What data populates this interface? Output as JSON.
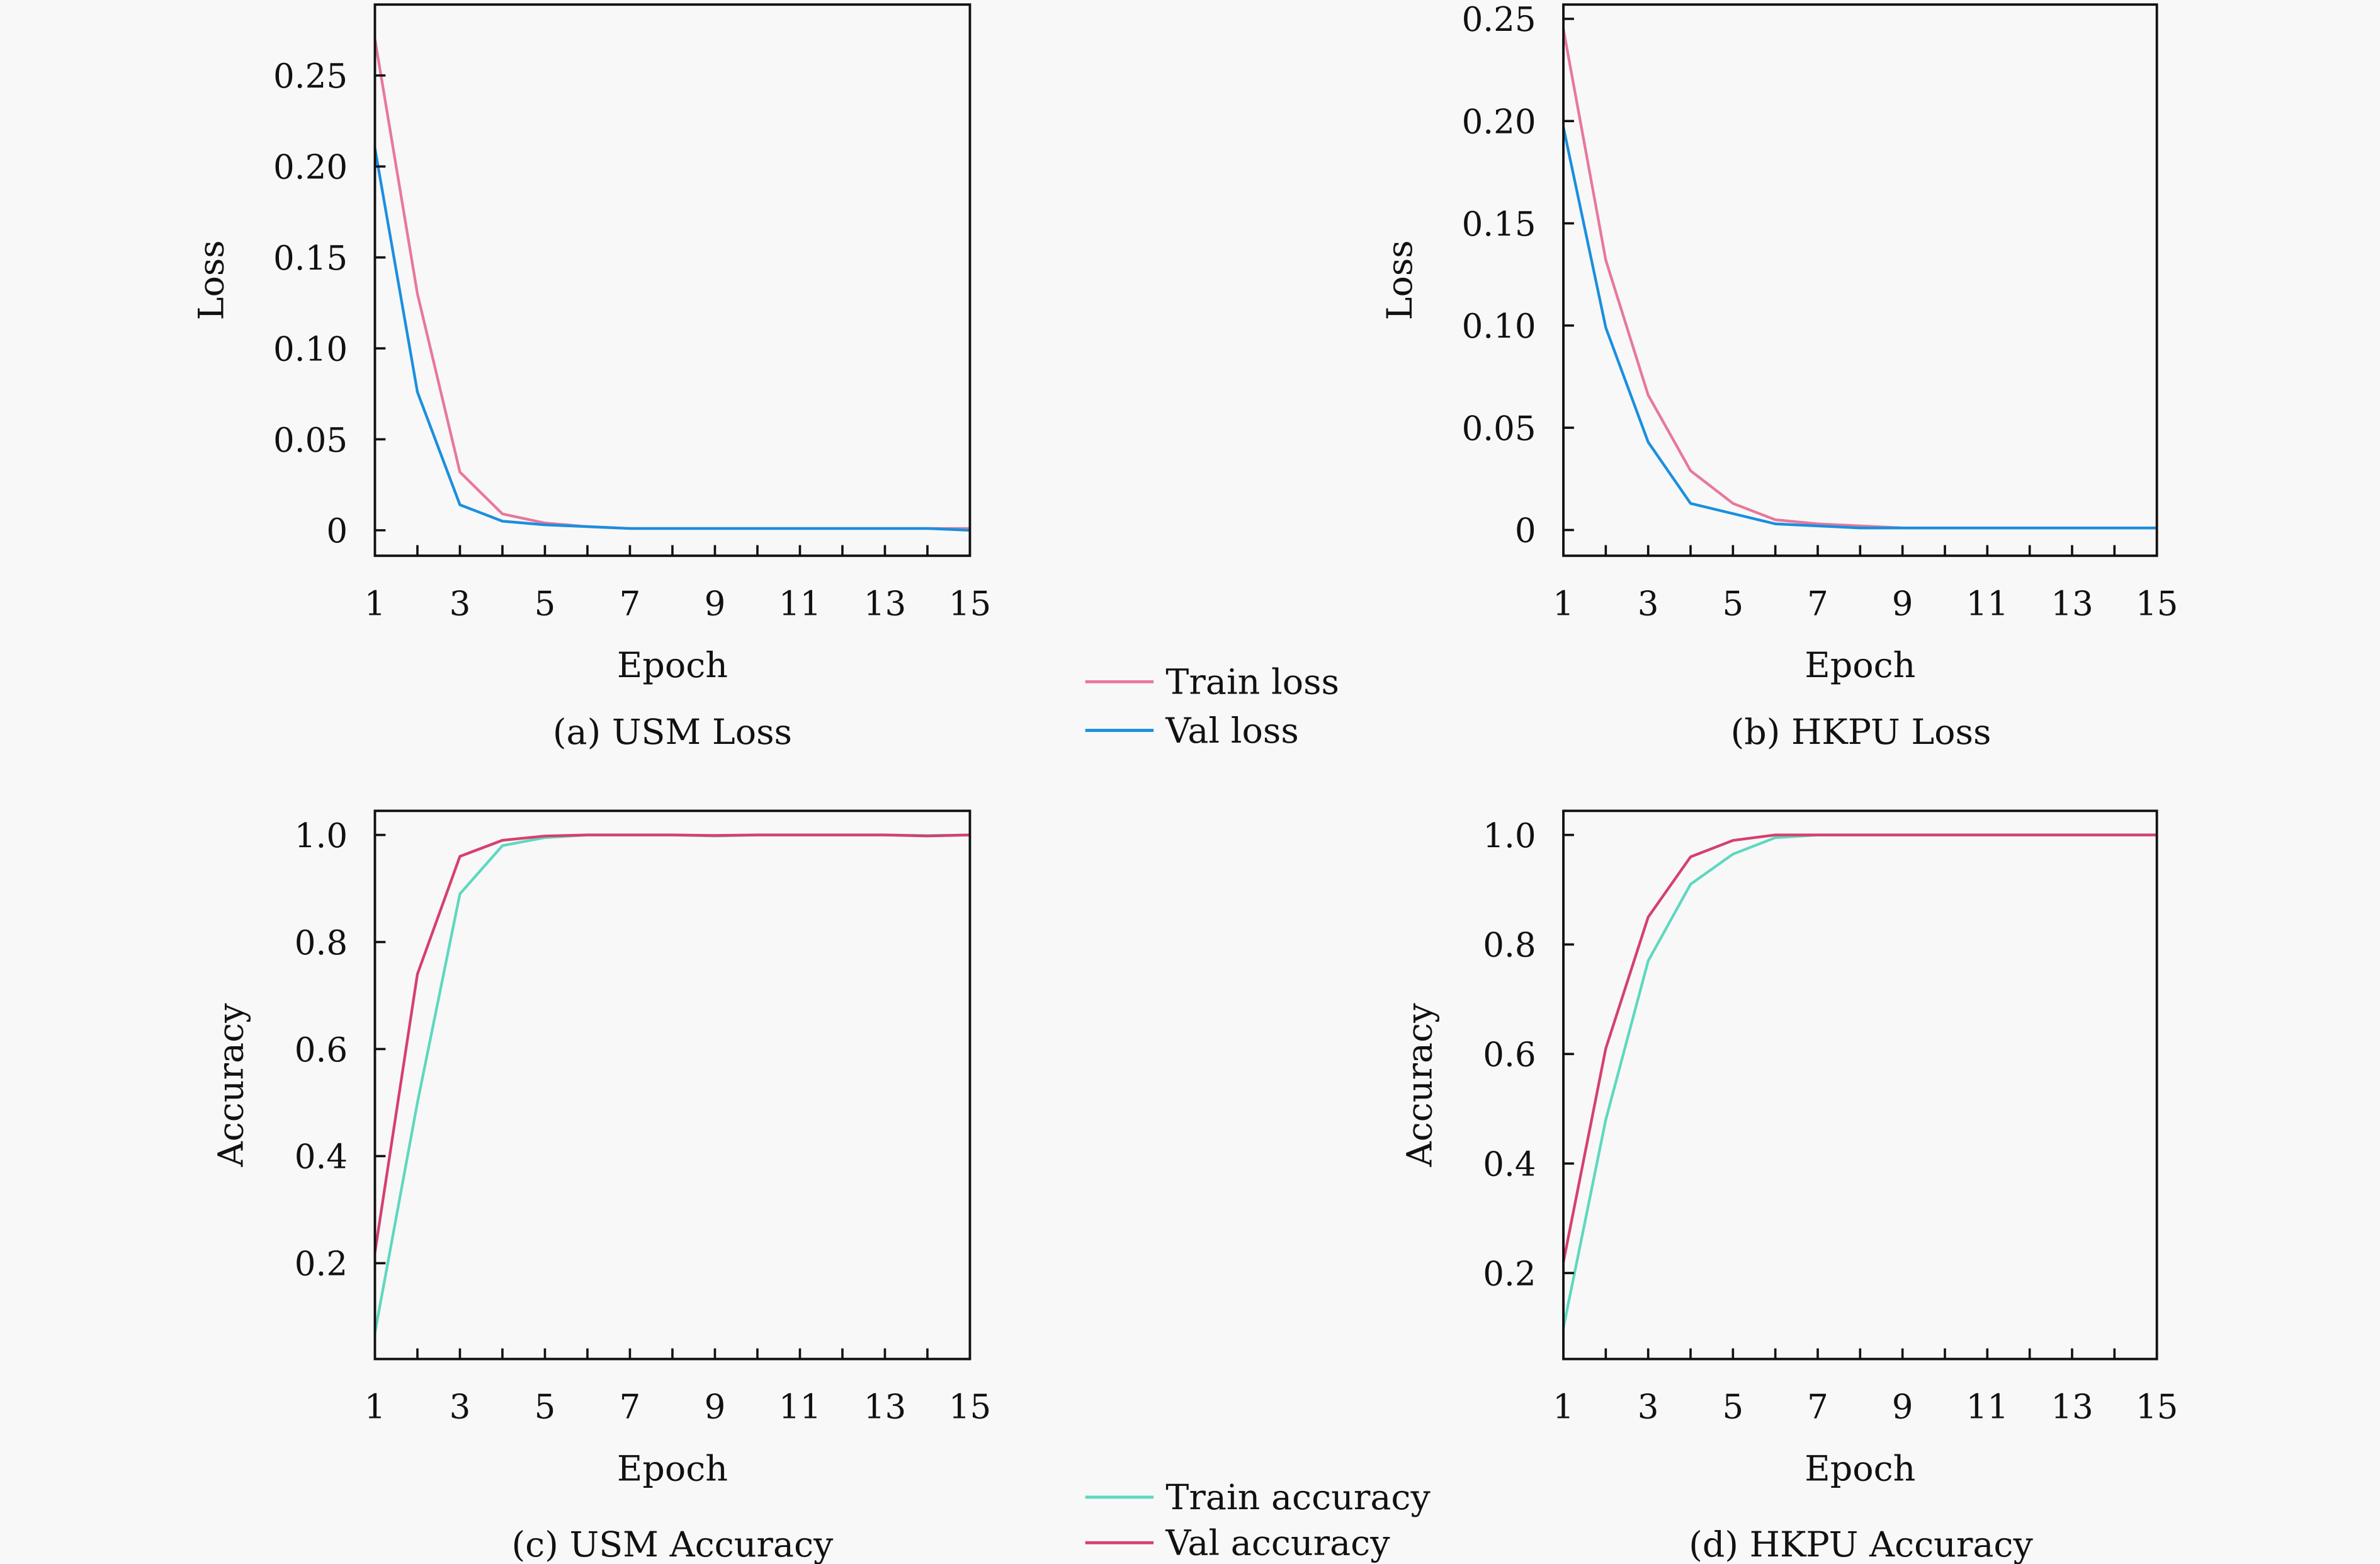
{
  "chart_data": [
    {
      "type": "line",
      "caption": "(a) USM Loss",
      "xlabel": "Epoch",
      "ylabel": "Loss",
      "x": [
        1,
        2,
        3,
        4,
        5,
        6,
        7,
        8,
        9,
        10,
        11,
        12,
        13,
        14,
        15
      ],
      "xticks": [
        "1",
        "3",
        "5",
        "7",
        "9",
        "11",
        "13",
        "15"
      ],
      "yticks": [
        "0",
        "0.05",
        "0.10",
        "0.15",
        "0.20",
        "0.25"
      ],
      "ytick_values": [
        0,
        0.05,
        0.1,
        0.15,
        0.2,
        0.25
      ],
      "ylim": [
        -0.014,
        0.289
      ],
      "series": [
        {
          "name": "Train loss",
          "color": "#e8789a",
          "values": [
            0.27,
            0.13,
            0.032,
            0.009,
            0.004,
            0.002,
            0.001,
            0.001,
            0.001,
            0.001,
            0.001,
            0.001,
            0.001,
            0.001,
            0.001
          ]
        },
        {
          "name": "Val loss",
          "color": "#1a8fe0",
          "values": [
            0.21,
            0.076,
            0.014,
            0.005,
            0.003,
            0.002,
            0.001,
            0.001,
            0.001,
            0.001,
            0.001,
            0.001,
            0.001,
            0.001,
            0.0
          ]
        }
      ]
    },
    {
      "type": "line",
      "caption": "(b) HKPU Loss",
      "xlabel": "Epoch",
      "ylabel": "Loss",
      "x": [
        1,
        2,
        3,
        4,
        5,
        6,
        7,
        8,
        9,
        10,
        11,
        12,
        13,
        14,
        15
      ],
      "xticks": [
        "1",
        "3",
        "5",
        "7",
        "9",
        "11",
        "13",
        "15"
      ],
      "yticks": [
        "0",
        "0.05",
        "0.10",
        "0.15",
        "0.20",
        "0.25"
      ],
      "ytick_values": [
        0,
        0.05,
        0.1,
        0.15,
        0.2,
        0.25
      ],
      "ylim": [
        -0.0126,
        0.257
      ],
      "series": [
        {
          "name": "Train loss",
          "color": "#e8789a",
          "values": [
            0.245,
            0.132,
            0.066,
            0.029,
            0.013,
            0.005,
            0.003,
            0.002,
            0.001,
            0.001,
            0.001,
            0.001,
            0.001,
            0.001,
            0.001
          ]
        },
        {
          "name": "Val loss",
          "color": "#1a8fe0",
          "values": [
            0.197,
            0.099,
            0.043,
            0.013,
            0.008,
            0.003,
            0.002,
            0.001,
            0.001,
            0.001,
            0.001,
            0.001,
            0.001,
            0.001,
            0.001
          ]
        }
      ]
    },
    {
      "type": "line",
      "caption": "(c) USM Accuracy",
      "xlabel": "Epoch",
      "ylabel": "Accuracy",
      "x": [
        1,
        2,
        3,
        4,
        5,
        6,
        7,
        8,
        9,
        10,
        11,
        12,
        13,
        14,
        15
      ],
      "xticks": [
        "1",
        "3",
        "5",
        "7",
        "9",
        "11",
        "13",
        "15"
      ],
      "yticks": [
        "0.2",
        "0.4",
        "0.6",
        "0.8",
        "1.0"
      ],
      "ytick_values": [
        0.2,
        0.4,
        0.6,
        0.8,
        1.0
      ],
      "ylim": [
        0.021,
        1.045
      ],
      "series": [
        {
          "name": "Train accuracy",
          "color": "#5fd8c0",
          "values": [
            0.07,
            0.5,
            0.89,
            0.98,
            0.995,
            1.0,
            1.0,
            1.0,
            0.998,
            1.0,
            1.0,
            1.0,
            1.0,
            0.999,
            1.0
          ]
        },
        {
          "name": "Val accuracy",
          "color": "#d6406e",
          "values": [
            0.22,
            0.74,
            0.96,
            0.99,
            0.998,
            1.0,
            1.0,
            1.0,
            0.999,
            1.0,
            1.0,
            1.0,
            1.0,
            0.998,
            1.0
          ]
        }
      ]
    },
    {
      "type": "line",
      "caption": "(d) HKPU Accuracy",
      "xlabel": "Epoch",
      "ylabel": "Accuracy",
      "x": [
        1,
        2,
        3,
        4,
        5,
        6,
        7,
        8,
        9,
        10,
        11,
        12,
        13,
        14,
        15
      ],
      "xticks": [
        "1",
        "3",
        "5",
        "7",
        "9",
        "11",
        "13",
        "15"
      ],
      "yticks": [
        "0.2",
        "0.4",
        "0.6",
        "0.8",
        "1.0"
      ],
      "ytick_values": [
        0.2,
        0.4,
        0.6,
        0.8,
        1.0
      ],
      "ylim": [
        0.043,
        1.044
      ],
      "series": [
        {
          "name": "Train accuracy",
          "color": "#5fd8c0",
          "values": [
            0.1,
            0.48,
            0.77,
            0.91,
            0.965,
            0.995,
            1.0,
            1.0,
            1.0,
            1.0,
            1.0,
            1.0,
            1.0,
            1.0,
            1.0
          ]
        },
        {
          "name": "Val accuracy",
          "color": "#d6406e",
          "values": [
            0.22,
            0.61,
            0.85,
            0.96,
            0.99,
            1.0,
            1.0,
            1.0,
            1.0,
            1.0,
            1.0,
            1.0,
            1.0,
            1.0,
            1.0
          ]
        }
      ]
    }
  ],
  "legends": {
    "loss": [
      {
        "label": "Train loss",
        "color": "#e8789a"
      },
      {
        "label": "Val loss",
        "color": "#1a8fe0"
      }
    ],
    "accuracy": [
      {
        "label": "Train accuracy",
        "color": "#5fd8c0"
      },
      {
        "label": "Val accuracy",
        "color": "#d6406e"
      }
    ]
  }
}
